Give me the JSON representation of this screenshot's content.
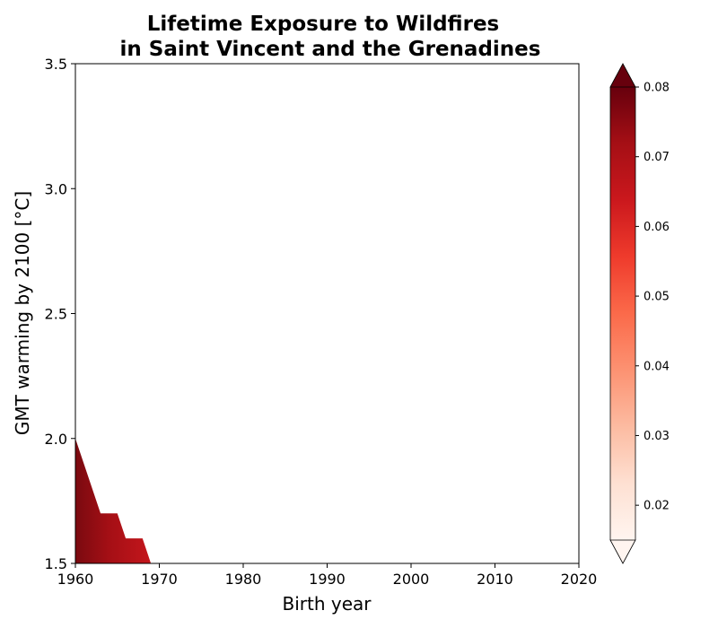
{
  "chart_data": {
    "type": "heatmap",
    "title_lines": [
      "Lifetime Exposure to Wildfires",
      "in Saint Vincent and the Grenadines"
    ],
    "xlabel": "Birth year",
    "ylabel": "GMT warming by 2100 [°C]",
    "xlim": [
      1960,
      2020
    ],
    "ylim": [
      1.5,
      3.5
    ],
    "x_ticks": [
      1960,
      1970,
      1980,
      1990,
      2000,
      2010,
      2020
    ],
    "y_ticks": [
      1.5,
      2.0,
      2.5,
      3.0,
      3.5
    ],
    "y_tick_labels": [
      "1.5",
      "2.0",
      "2.5",
      "3.0",
      "3.5"
    ],
    "colorbar": {
      "cmap": "Reds",
      "range": [
        0.015,
        0.08
      ],
      "ticks": [
        0.02,
        0.03,
        0.04,
        0.05,
        0.06,
        0.07,
        0.08
      ],
      "tick_labels": [
        "0.02",
        "0.03",
        "0.04",
        "0.05",
        "0.06",
        "0.07",
        "0.08"
      ],
      "extend": "both"
    },
    "filled_region": {
      "description_values": "nonzero exposure only for early birth years at low warming",
      "boundary": [
        {
          "birth_year": 1960,
          "gmt": 2.0
        },
        {
          "birth_year": 1963,
          "gmt": 1.7
        },
        {
          "birth_year": 1965,
          "gmt": 1.7
        },
        {
          "birth_year": 1966,
          "gmt": 1.6
        },
        {
          "birth_year": 1968,
          "gmt": 1.6
        },
        {
          "birth_year": 1969,
          "gmt": 1.5
        }
      ],
      "value_dark": 0.075,
      "value_light": 0.063
    }
  },
  "colors": {
    "dark_red": "#67000d",
    "mid_red": "#a50f15",
    "red": "#cb181d",
    "light": "#fff5f0"
  }
}
